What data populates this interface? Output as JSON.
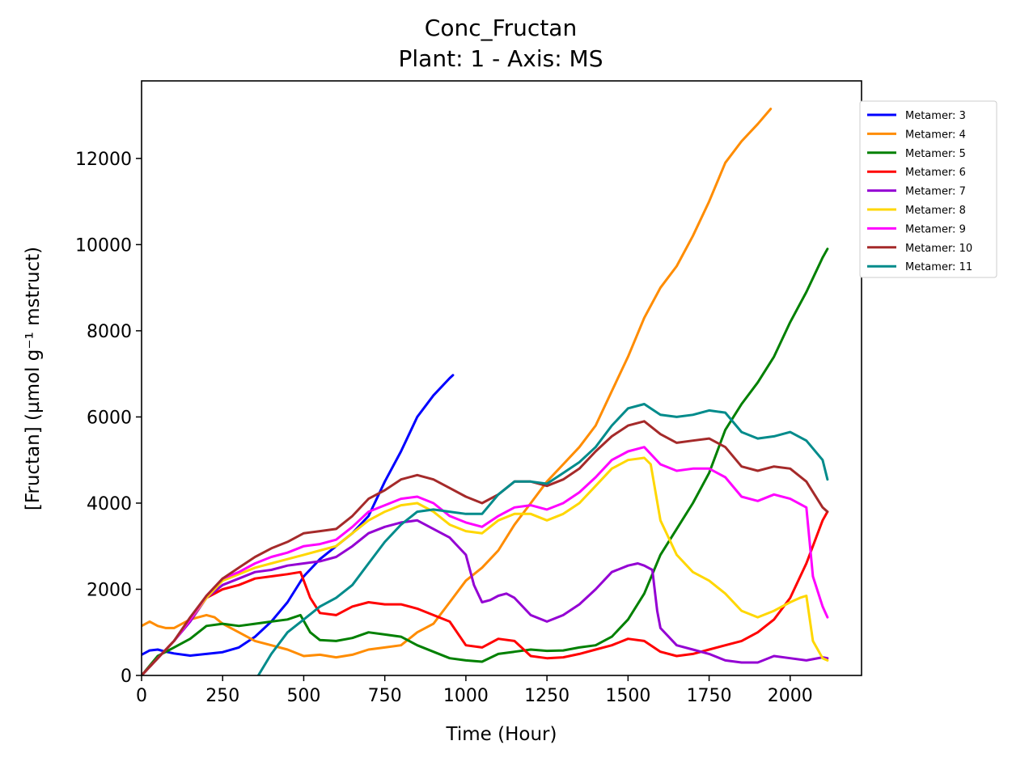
{
  "chart_data": {
    "type": "line",
    "title": "Conc_Fructan",
    "subtitle": "Plant: 1 - Axis: MS",
    "xlabel": "Time (Hour)",
    "ylabel": "[Fructan] (µmol g⁻¹ mstruct)",
    "xlim": [
      0,
      2220
    ],
    "ylim": [
      0,
      13800
    ],
    "xticks": [
      0,
      250,
      500,
      750,
      1000,
      1250,
      1500,
      1750,
      2000
    ],
    "xtick_labels": [
      "0",
      "250",
      "500",
      "750",
      "1000",
      "1250",
      "1500",
      "1750",
      "2000"
    ],
    "yticks": [
      0,
      2000,
      4000,
      6000,
      8000,
      10000,
      12000
    ],
    "ytick_labels": [
      "0",
      "2000",
      "4000",
      "6000",
      "8000",
      "10000",
      "12000"
    ],
    "grid": false,
    "legend_position": "outside-right-top",
    "series": [
      {
        "name": "Metamer: 3",
        "color": "#0000ff",
        "x": [
          0,
          25,
          50,
          75,
          100,
          150,
          200,
          250,
          300,
          350,
          400,
          450,
          500,
          550,
          600,
          650,
          700,
          750,
          800,
          850,
          900,
          950,
          960
        ],
        "y": [
          480,
          580,
          600,
          550,
          510,
          460,
          500,
          540,
          650,
          900,
          1250,
          1700,
          2300,
          2700,
          3000,
          3300,
          3700,
          4500,
          5200,
          6000,
          6500,
          6900,
          6970
        ]
      },
      {
        "name": "Metamer: 4",
        "color": "#ff8c00",
        "x": [
          0,
          25,
          50,
          75,
          100,
          125,
          150,
          175,
          200,
          225,
          250,
          300,
          350,
          400,
          450,
          500,
          550,
          600,
          650,
          700,
          750,
          800,
          850,
          900,
          950,
          1000,
          1050,
          1100,
          1150,
          1200,
          1250,
          1300,
          1350,
          1400,
          1450,
          1500,
          1550,
          1600,
          1650,
          1700,
          1750,
          1800,
          1850,
          1900,
          1940
        ],
        "y": [
          1150,
          1250,
          1150,
          1100,
          1100,
          1200,
          1300,
          1350,
          1400,
          1350,
          1200,
          1000,
          800,
          700,
          600,
          450,
          480,
          420,
          480,
          600,
          650,
          700,
          1000,
          1200,
          1700,
          2200,
          2500,
          2900,
          3500,
          4000,
          4500,
          4900,
          5300,
          5800,
          6600,
          7400,
          8300,
          9000,
          9500,
          10200,
          11000,
          11900,
          12400,
          12800,
          13150
        ]
      },
      {
        "name": "Metamer: 5",
        "color": "#008000",
        "x": [
          0,
          50,
          100,
          150,
          200,
          250,
          300,
          350,
          400,
          450,
          490,
          520,
          550,
          600,
          650,
          700,
          750,
          800,
          850,
          900,
          950,
          1000,
          1050,
          1100,
          1150,
          1200,
          1250,
          1300,
          1350,
          1400,
          1450,
          1500,
          1550,
          1600,
          1650,
          1700,
          1750,
          1800,
          1850,
          1900,
          1950,
          2000,
          2050,
          2100,
          2115
        ],
        "y": [
          0,
          450,
          650,
          850,
          1150,
          1200,
          1150,
          1200,
          1250,
          1300,
          1400,
          1000,
          820,
          800,
          870,
          1000,
          950,
          900,
          700,
          550,
          400,
          350,
          320,
          500,
          550,
          600,
          570,
          580,
          650,
          700,
          900,
          1300,
          1900,
          2800,
          3400,
          4000,
          4700,
          5700,
          6300,
          6800,
          7400,
          8200,
          8900,
          9700,
          9900
        ]
      },
      {
        "name": "Metamer: 6",
        "color": "#ff0000",
        "x": [
          0,
          50,
          100,
          150,
          200,
          250,
          300,
          350,
          400,
          450,
          490,
          500,
          520,
          550,
          600,
          650,
          700,
          750,
          800,
          850,
          900,
          950,
          1000,
          1050,
          1100,
          1150,
          1200,
          1250,
          1300,
          1350,
          1400,
          1450,
          1500,
          1550,
          1600,
          1650,
          1700,
          1750,
          1800,
          1850,
          1900,
          1950,
          2000,
          2050,
          2100,
          2115
        ],
        "y": [
          0,
          400,
          800,
          1300,
          1800,
          2000,
          2100,
          2250,
          2300,
          2350,
          2400,
          2200,
          1800,
          1450,
          1400,
          1600,
          1700,
          1650,
          1650,
          1550,
          1400,
          1250,
          700,
          650,
          850,
          800,
          450,
          400,
          420,
          500,
          600,
          700,
          850,
          800,
          550,
          450,
          500,
          600,
          700,
          800,
          1000,
          1300,
          1800,
          2600,
          3600,
          3800
        ]
      },
      {
        "name": "Metamer: 7",
        "color": "#9400d3",
        "x": [
          0,
          50,
          100,
          150,
          200,
          250,
          300,
          350,
          400,
          450,
          500,
          550,
          600,
          650,
          700,
          750,
          800,
          850,
          900,
          950,
          1000,
          1025,
          1050,
          1075,
          1100,
          1125,
          1150,
          1200,
          1250,
          1300,
          1350,
          1400,
          1450,
          1500,
          1530,
          1550,
          1575,
          1590,
          1600,
          1650,
          1700,
          1750,
          1800,
          1850,
          1900,
          1950,
          2000,
          2050,
          2100,
          2115
        ],
        "y": [
          0,
          400,
          800,
          1250,
          1800,
          2100,
          2250,
          2400,
          2450,
          2550,
          2600,
          2650,
          2750,
          3000,
          3300,
          3450,
          3550,
          3600,
          3400,
          3200,
          2800,
          2100,
          1700,
          1750,
          1850,
          1900,
          1800,
          1400,
          1250,
          1400,
          1650,
          2000,
          2400,
          2550,
          2600,
          2550,
          2450,
          1500,
          1100,
          700,
          600,
          500,
          350,
          300,
          300,
          450,
          400,
          350,
          420,
          400
        ]
      },
      {
        "name": "Metamer: 8",
        "color": "#ffd700",
        "x": [
          0,
          50,
          100,
          150,
          200,
          250,
          300,
          350,
          400,
          450,
          500,
          550,
          600,
          650,
          700,
          750,
          800,
          850,
          900,
          950,
          1000,
          1050,
          1100,
          1150,
          1200,
          1250,
          1300,
          1350,
          1400,
          1450,
          1500,
          1550,
          1570,
          1600,
          1650,
          1700,
          1750,
          1800,
          1850,
          1900,
          1950,
          2000,
          2030,
          2050,
          2070,
          2100,
          2115
        ],
        "y": [
          0,
          400,
          800,
          1300,
          1800,
          2200,
          2350,
          2500,
          2600,
          2700,
          2800,
          2900,
          3000,
          3300,
          3600,
          3800,
          3950,
          4000,
          3800,
          3500,
          3350,
          3300,
          3600,
          3750,
          3750,
          3600,
          3750,
          4000,
          4400,
          4800,
          5000,
          5050,
          4900,
          3600,
          2800,
          2400,
          2200,
          1900,
          1500,
          1350,
          1500,
          1700,
          1800,
          1850,
          800,
          400,
          350
        ]
      },
      {
        "name": "Metamer: 9",
        "color": "#ff00ff",
        "x": [
          0,
          50,
          100,
          150,
          200,
          250,
          300,
          350,
          400,
          450,
          500,
          550,
          600,
          650,
          700,
          750,
          800,
          850,
          900,
          950,
          1000,
          1050,
          1100,
          1150,
          1200,
          1250,
          1300,
          1350,
          1400,
          1450,
          1500,
          1550,
          1600,
          1650,
          1700,
          1750,
          1800,
          1850,
          1900,
          1950,
          2000,
          2050,
          2070,
          2100,
          2115
        ],
        "y": [
          0,
          400,
          800,
          1300,
          1850,
          2250,
          2400,
          2600,
          2750,
          2850,
          3000,
          3050,
          3150,
          3450,
          3800,
          3950,
          4100,
          4150,
          4000,
          3700,
          3550,
          3450,
          3700,
          3900,
          3950,
          3850,
          4000,
          4250,
          4600,
          5000,
          5200,
          5300,
          4900,
          4750,
          4800,
          4800,
          4600,
          4150,
          4050,
          4200,
          4100,
          3900,
          2300,
          1600,
          1350
        ]
      },
      {
        "name": "Metamer: 10",
        "color": "#a52a2a",
        "x": [
          0,
          50,
          100,
          150,
          200,
          250,
          300,
          350,
          400,
          450,
          500,
          550,
          600,
          650,
          700,
          750,
          800,
          850,
          900,
          950,
          1000,
          1050,
          1100,
          1150,
          1200,
          1250,
          1300,
          1350,
          1400,
          1450,
          1500,
          1550,
          1600,
          1650,
          1700,
          1750,
          1800,
          1850,
          1900,
          1950,
          2000,
          2050,
          2100,
          2115
        ],
        "y": [
          0,
          400,
          800,
          1350,
          1850,
          2250,
          2500,
          2750,
          2950,
          3100,
          3300,
          3350,
          3400,
          3700,
          4100,
          4300,
          4550,
          4650,
          4550,
          4350,
          4150,
          4000,
          4200,
          4500,
          4500,
          4400,
          4550,
          4800,
          5200,
          5550,
          5800,
          5900,
          5600,
          5400,
          5450,
          5500,
          5300,
          4850,
          4750,
          4850,
          4800,
          4500,
          3900,
          3800
        ]
      },
      {
        "name": "Metamer: 11",
        "color": "#008b8b",
        "x": [
          360,
          400,
          450,
          500,
          550,
          600,
          650,
          700,
          750,
          800,
          850,
          900,
          950,
          1000,
          1050,
          1100,
          1150,
          1200,
          1250,
          1300,
          1350,
          1400,
          1450,
          1500,
          1550,
          1600,
          1650,
          1700,
          1750,
          1800,
          1850,
          1900,
          1950,
          2000,
          2050,
          2100,
          2115
        ],
        "y": [
          0,
          500,
          1000,
          1300,
          1600,
          1800,
          2100,
          2600,
          3100,
          3500,
          3800,
          3850,
          3800,
          3750,
          3750,
          4200,
          4500,
          4500,
          4450,
          4700,
          4950,
          5300,
          5800,
          6200,
          6300,
          6050,
          6000,
          6050,
          6150,
          6100,
          5650,
          5500,
          5550,
          5650,
          5450,
          5000,
          4550
        ]
      }
    ]
  }
}
